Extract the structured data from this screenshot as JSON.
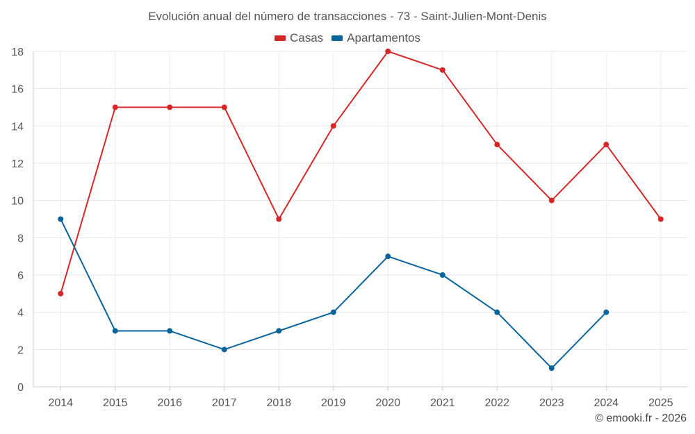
{
  "chart_data": {
    "type": "line",
    "title": "Evolución anual del número de transacciones - 73 - Saint-Julien-Mont-Denis",
    "categories": [
      "2014",
      "2015",
      "2016",
      "2017",
      "2018",
      "2019",
      "2020",
      "2021",
      "2022",
      "2023",
      "2024",
      "2025"
    ],
    "series": [
      {
        "name": "Casas",
        "color": "#d62728",
        "values": [
          5,
          15,
          15,
          15,
          9,
          14,
          18,
          17,
          13,
          10,
          13,
          9
        ]
      },
      {
        "name": "Apartamentos",
        "color": "#08659b",
        "values": [
          9,
          3,
          3,
          2,
          3,
          4,
          7,
          6,
          4,
          1,
          4,
          null
        ]
      }
    ],
    "ylim": [
      0,
      18
    ],
    "yticks": [
      0,
      2,
      4,
      6,
      8,
      10,
      12,
      14,
      16,
      18
    ],
    "xlabel": "",
    "ylabel": "",
    "grid": true,
    "legend_position": "top-center"
  },
  "credit": "© emooki.fr - 2026"
}
